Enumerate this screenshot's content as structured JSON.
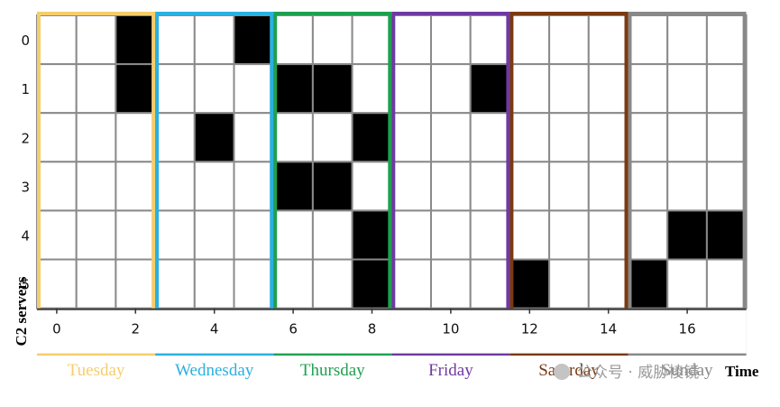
{
  "chart_data": {
    "type": "heatmap",
    "xlabel": "Time",
    "ylabel": "C2 servers",
    "x_ticks": [
      "0",
      "2",
      "4",
      "6",
      "8",
      "10",
      "12",
      "14",
      "16"
    ],
    "y_ticks": [
      "0",
      "1",
      "2",
      "3",
      "4",
      "5"
    ],
    "n_columns": 18,
    "n_rows": 6,
    "active_cells": [
      {
        "x": 2,
        "y": 0
      },
      {
        "x": 2,
        "y": 1
      },
      {
        "x": 5,
        "y": 0
      },
      {
        "x": 4,
        "y": 2
      },
      {
        "x": 6,
        "y": 1
      },
      {
        "x": 7,
        "y": 1
      },
      {
        "x": 8,
        "y": 2
      },
      {
        "x": 6,
        "y": 3
      },
      {
        "x": 7,
        "y": 3
      },
      {
        "x": 8,
        "y": 4
      },
      {
        "x": 8,
        "y": 5
      },
      {
        "x": 11,
        "y": 1
      },
      {
        "x": 12,
        "y": 5
      },
      {
        "x": 15,
        "y": 5
      },
      {
        "x": 16,
        "y": 4
      },
      {
        "x": 17,
        "y": 4
      }
    ],
    "day_groups": [
      {
        "label": "Tuesday",
        "start": 0,
        "end": 2,
        "color": "#F5CE6C"
      },
      {
        "label": "Wednesday",
        "start": 3,
        "end": 5,
        "color": "#2BB0E0"
      },
      {
        "label": "Thursday",
        "start": 6,
        "end": 8,
        "color": "#1FA050"
      },
      {
        "label": "Friday",
        "start": 9,
        "end": 11,
        "color": "#6F3AA0"
      },
      {
        "label": "Saturday",
        "start": 12,
        "end": 14,
        "color": "#7A3A12"
      },
      {
        "label": "Sunday",
        "start": 15,
        "end": 17,
        "color": "#888888"
      }
    ],
    "cell_color": "#000000",
    "grid_color": "#8a8a8a",
    "grid": true
  },
  "watermark": {
    "text": "公众号 · 威胁棱镜"
  }
}
